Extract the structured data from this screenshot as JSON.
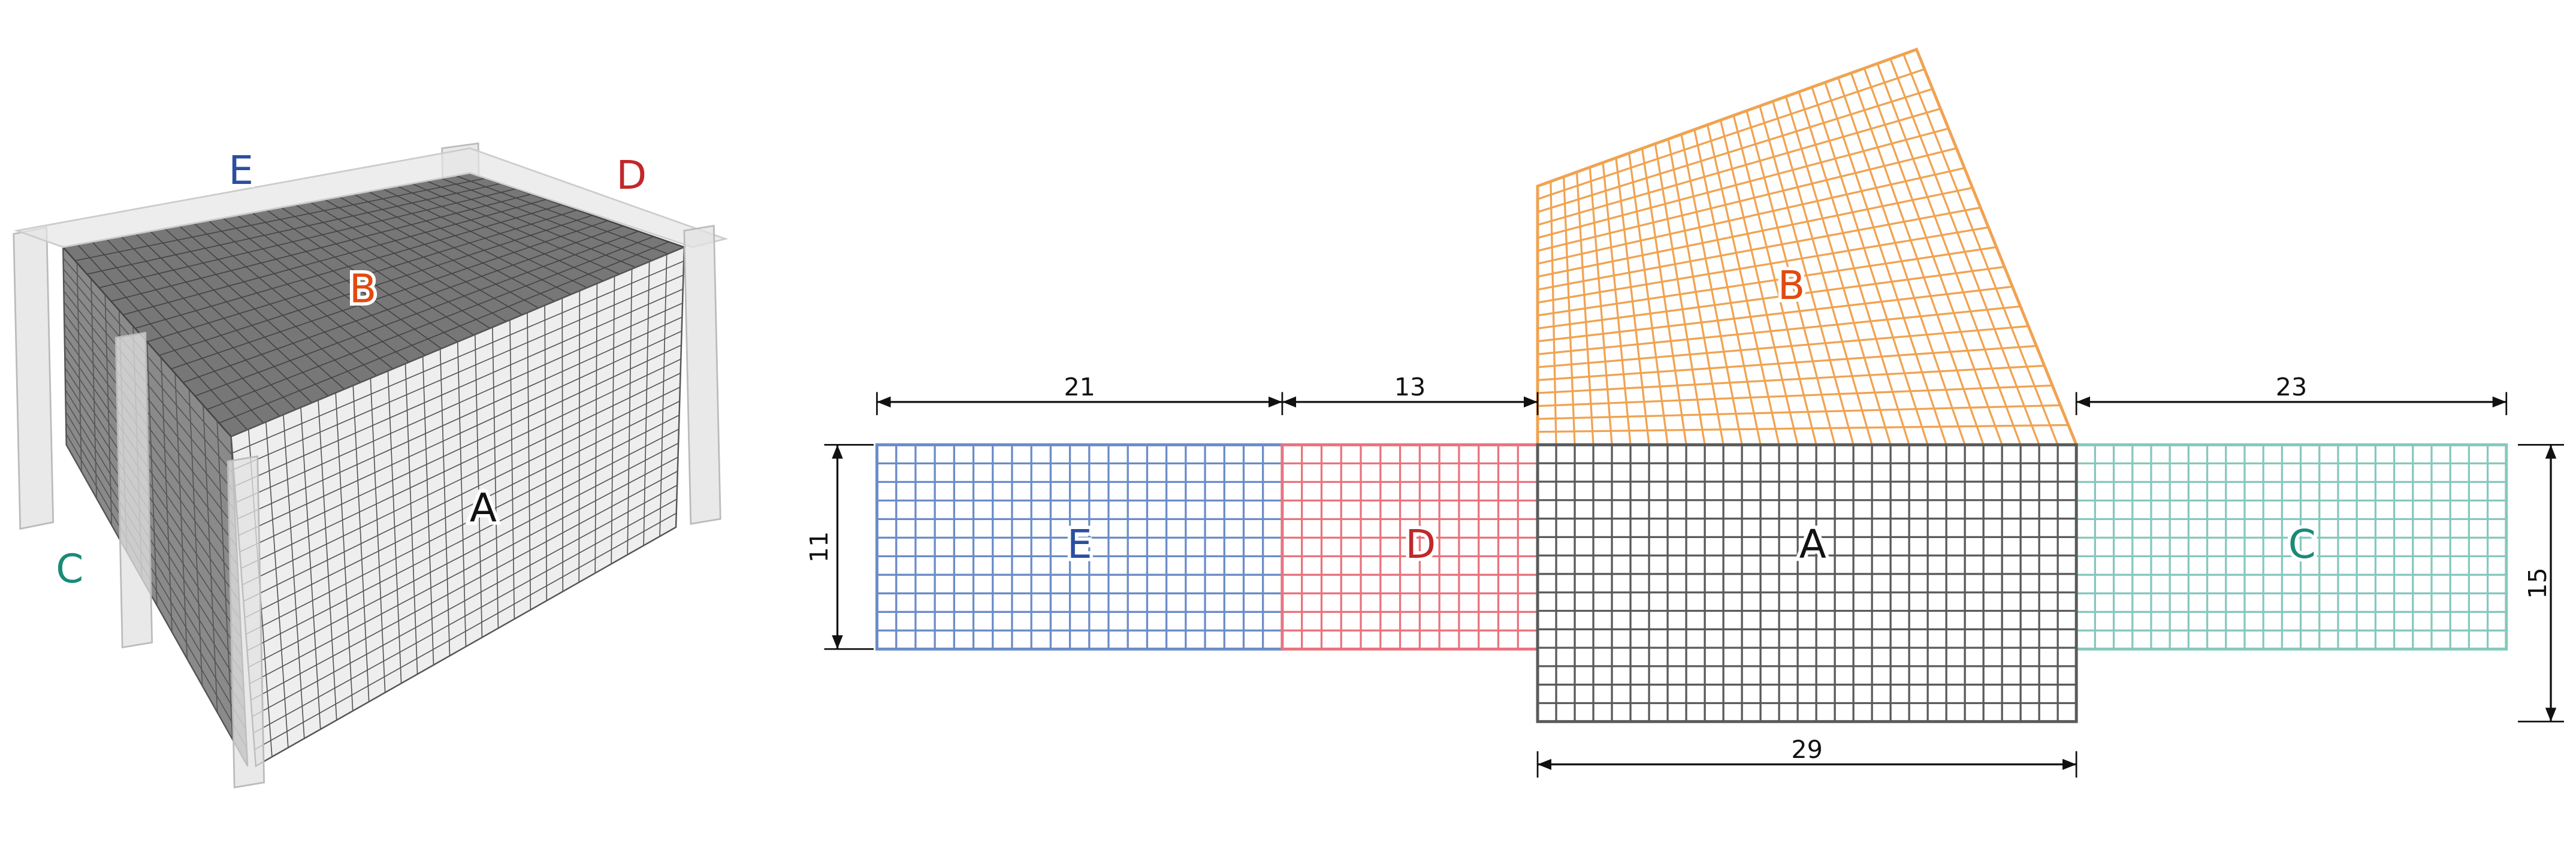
{
  "box_view": {
    "labels": {
      "E": "E",
      "D": "D",
      "B": "B",
      "A": "A",
      "C": "C"
    }
  },
  "net": {
    "faces": {
      "E": "E",
      "D": "D",
      "A": "A",
      "C": "C",
      "B": "B"
    },
    "dimensions": {
      "E_width": 21,
      "D_width": 13,
      "C_width": 23,
      "side_height": 11,
      "A_height": 15,
      "A_width": 29
    }
  }
}
